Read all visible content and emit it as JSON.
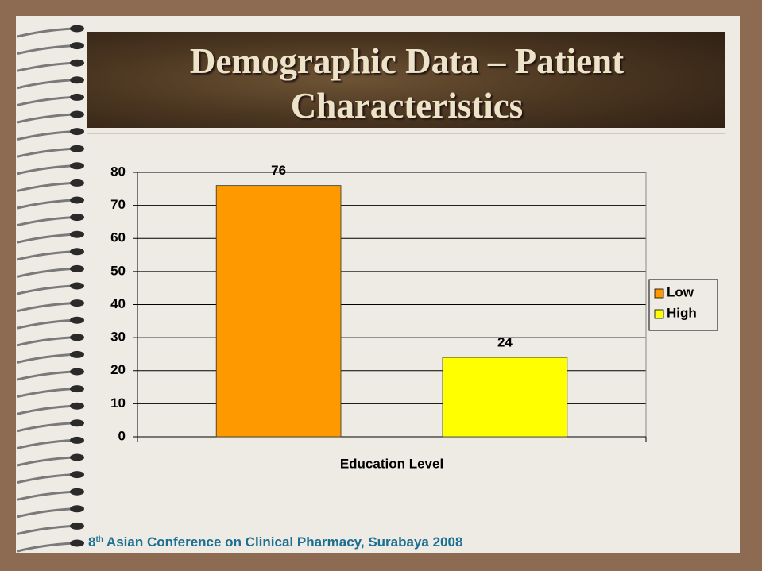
{
  "slide": {
    "title_lines": [
      "Demographic Data – Patient",
      "Characteristics"
    ],
    "footer": {
      "ordinal": "8",
      "ordinal_suffix": "th",
      "text": "Asian Conference on Clinical Pharmacy, Surabaya 2008"
    }
  },
  "chart_data": {
    "type": "bar",
    "categories": [
      "Education Level"
    ],
    "series": [
      {
        "name": "Low",
        "color": "#ff9900",
        "values": [
          76
        ]
      },
      {
        "name": "High",
        "color": "#ffff00",
        "values": [
          24
        ]
      }
    ],
    "ylim": [
      0,
      80
    ],
    "yticks": [
      0,
      10,
      20,
      30,
      40,
      50,
      60,
      70,
      80
    ],
    "grid": true,
    "legend": "right"
  }
}
